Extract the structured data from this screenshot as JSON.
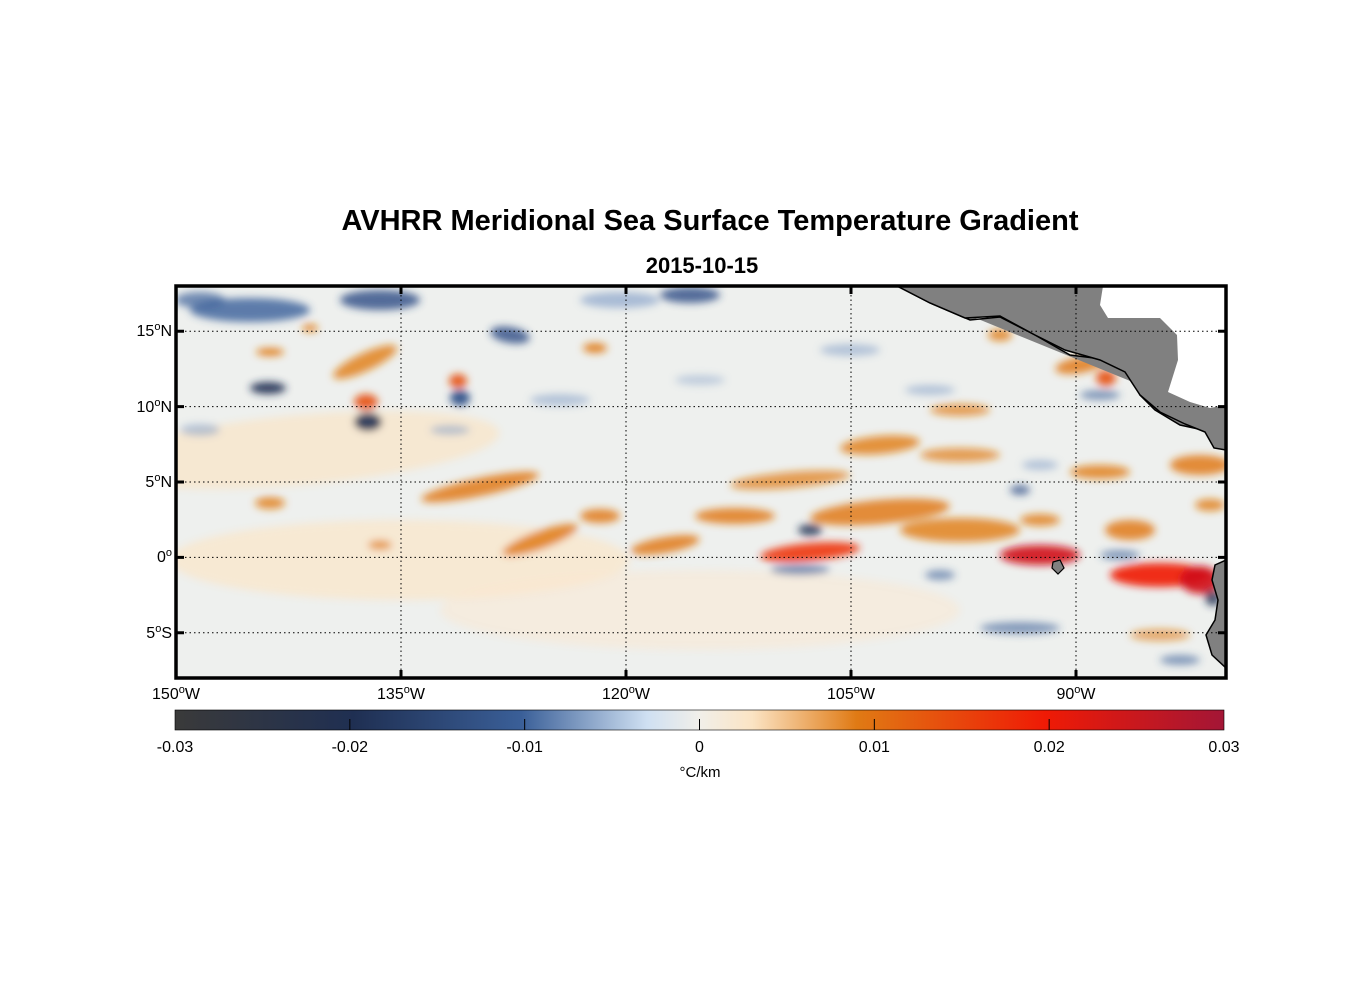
{
  "figure": {
    "title": "AVHRR Meridional Sea Surface Temperature Gradient",
    "date": "2015-10-15"
  },
  "map": {
    "lon_range": [
      -150,
      -80
    ],
    "lat_range": [
      -8,
      18
    ],
    "grid": "dotted",
    "land_color": "#808080",
    "latitude_ticks": [
      {
        "value": 15,
        "label": "15",
        "hemi": "N"
      },
      {
        "value": 10,
        "label": "10",
        "hemi": "N"
      },
      {
        "value": 5,
        "label": "5",
        "hemi": "N"
      },
      {
        "value": 0,
        "label": "0",
        "hemi": ""
      },
      {
        "value": -5,
        "label": "5",
        "hemi": "S"
      }
    ],
    "longitude_ticks": [
      {
        "value": -150,
        "label": "150",
        "hemi": "W"
      },
      {
        "value": -135,
        "label": "135",
        "hemi": "W"
      },
      {
        "value": -120,
        "label": "120",
        "hemi": "W"
      },
      {
        "value": -105,
        "label": "105",
        "hemi": "W"
      },
      {
        "value": -90,
        "label": "90",
        "hemi": "W"
      }
    ],
    "degree_symbol": "o"
  },
  "colorbar": {
    "range": [
      -0.03,
      0.03
    ],
    "ticks": [
      "-0.03",
      "-0.02",
      "-0.01",
      "0",
      "0.01",
      "0.02",
      "0.03"
    ],
    "unit": "°C/km",
    "colors": [
      "#3a3a3a",
      "#1f2f52",
      "#3a5f98",
      "#cfe0f2",
      "#f1efe9",
      "#fbe4c4",
      "#e07a14",
      "#ef1a05",
      "#a31636"
    ]
  }
}
